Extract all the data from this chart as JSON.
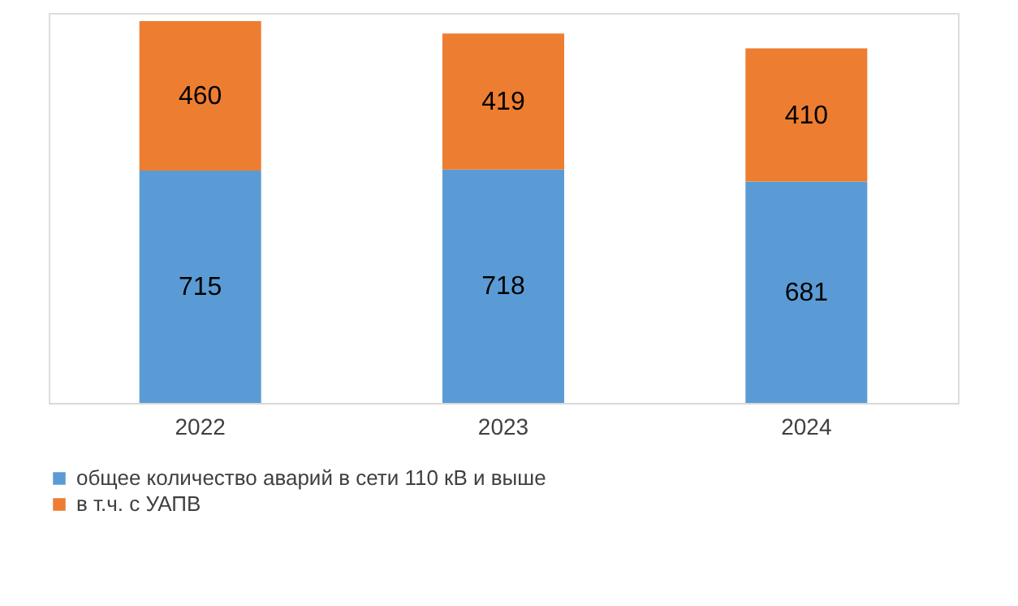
{
  "chart_data": {
    "type": "bar",
    "stacked": true,
    "data_labels": true,
    "grid": false,
    "legend": "bottom",
    "categories": [
      "2022",
      "2023",
      "2024"
    ],
    "series": [
      {
        "name": "общее количество аварий в сети 110 кВ и выше",
        "color": "#5b9bd5",
        "values": [
          715,
          718,
          681
        ]
      },
      {
        "name": "в т.ч. с УАПВ",
        "color": "#ed7d31",
        "values": [
          460,
          419,
          410
        ]
      }
    ]
  }
}
